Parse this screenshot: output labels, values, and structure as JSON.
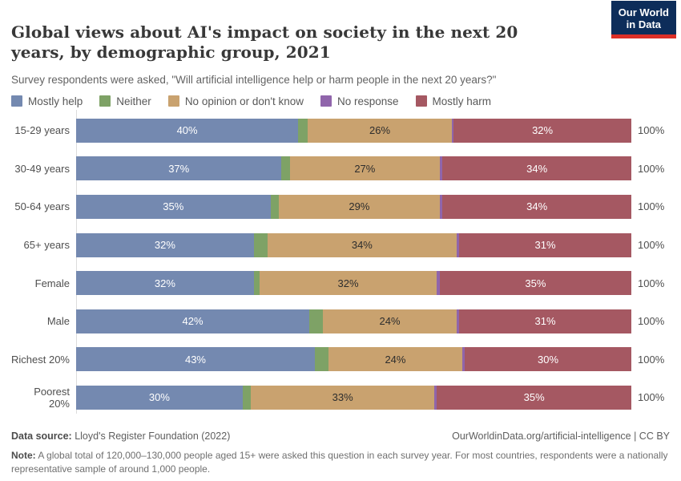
{
  "header": {
    "title": "Global views about AI's impact on society in the next 20 years, by demographic group, 2021",
    "subtitle": "Survey respondents were asked, \"Will artificial intelligence help or harm people in the next 20 years?\""
  },
  "logo": {
    "line1": "Our World",
    "line2": "in Data",
    "background": "#0d2d5a",
    "stripe": "#dc2f27"
  },
  "legend": [
    {
      "label": "Mostly help",
      "color": "#7489b0"
    },
    {
      "label": "Neither",
      "color": "#7ea266"
    },
    {
      "label": "No opinion or don't know",
      "color": "#c9a26f"
    },
    {
      "label": "No response",
      "color": "#9065ab"
    },
    {
      "label": "Mostly harm",
      "color": "#a55862"
    }
  ],
  "chart_data": {
    "type": "bar",
    "orientation": "horizontal_stacked",
    "unit": "%",
    "xlim": [
      0,
      100
    ],
    "row_total_label": "100%",
    "categories": [
      "15-29 years",
      "30-49 years",
      "50-64 years",
      "65+ years",
      "Female",
      "Male",
      "Richest 20%",
      "Poorest 20%"
    ],
    "series": [
      {
        "name": "Mostly help",
        "color": "#7489b0",
        "text_color": "#ffffff",
        "values": [
          40,
          37,
          35,
          32,
          32,
          42,
          43,
          30
        ],
        "labels": [
          "40%",
          "37%",
          "35%",
          "32%",
          "32%",
          "42%",
          "43%",
          "30%"
        ]
      },
      {
        "name": "Neither",
        "color": "#7ea266",
        "text_color": "#ffffff",
        "values": [
          1.7,
          1.5,
          1.5,
          2.5,
          1.0,
          2.5,
          2.5,
          1.5
        ],
        "labels": [
          "",
          "",
          "",
          "",
          "",
          "",
          "",
          ""
        ]
      },
      {
        "name": "No opinion or don't know",
        "color": "#c9a26f",
        "text_color": "#2d2d2d",
        "values": [
          26,
          27,
          29,
          34,
          32,
          24,
          24,
          33
        ],
        "labels": [
          "26%",
          "27%",
          "29%",
          "34%",
          "32%",
          "24%",
          "24%",
          "33%"
        ]
      },
      {
        "name": "No response",
        "color": "#9065ab",
        "text_color": "#ffffff",
        "values": [
          0.3,
          0.5,
          0.5,
          0.5,
          0.5,
          0.5,
          0.5,
          0.5
        ],
        "labels": [
          "",
          "",
          "",
          "",
          "",
          "",
          "",
          ""
        ]
      },
      {
        "name": "Mostly harm",
        "color": "#a55862",
        "text_color": "#ffffff",
        "values": [
          32,
          34,
          34,
          31,
          34.5,
          31,
          30,
          35
        ],
        "labels": [
          "32%",
          "34%",
          "34%",
          "31%",
          "35%",
          "31%",
          "30%",
          "35%"
        ]
      }
    ]
  },
  "footer": {
    "datasource_label": "Data source:",
    "datasource_text": " Lloyd's Register Foundation (2022)",
    "attribution": "OurWorldinData.org/artificial-intelligence | CC BY",
    "note_label": "Note:",
    "note_text": " A global total of 120,000–130,000 people aged 15+ were asked this question in each survey year. For most countries, respondents were a nationally representative sample of around 1,000 people."
  }
}
